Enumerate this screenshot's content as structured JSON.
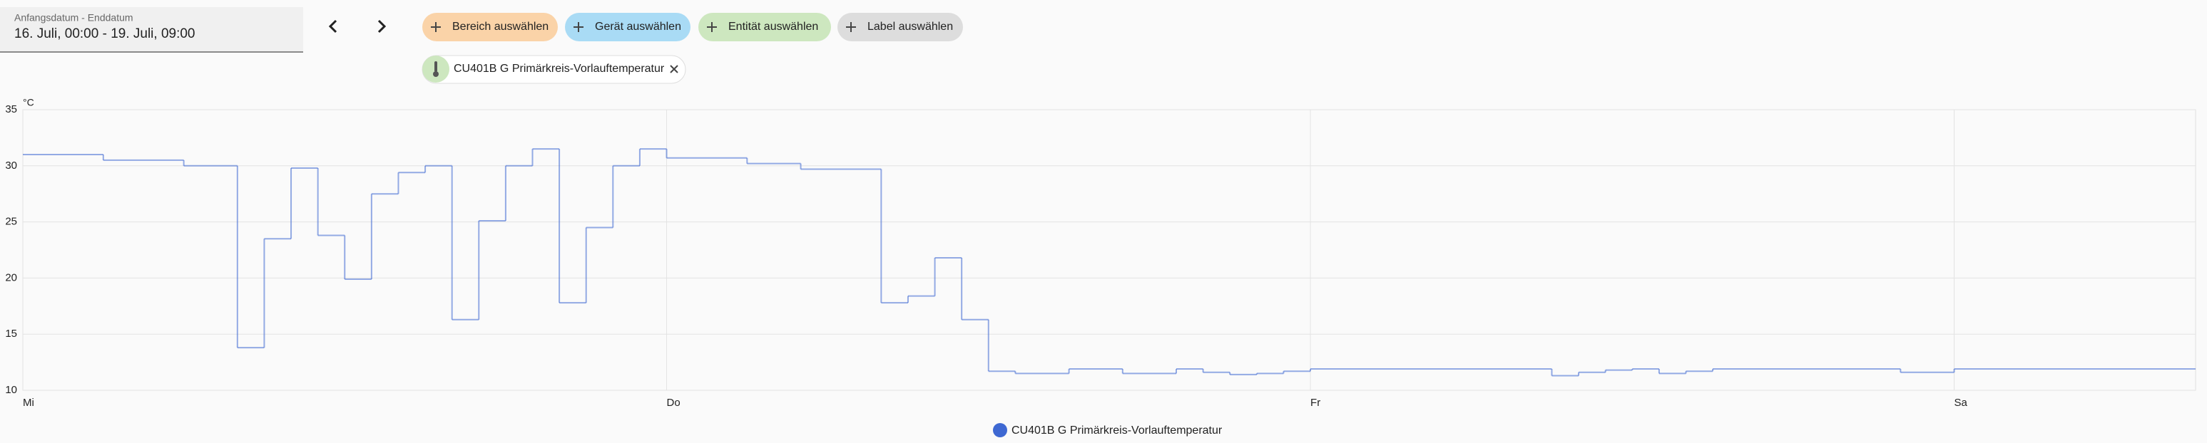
{
  "date_picker": {
    "label": "Anfangsdatum - Enddatum",
    "value": "16. Juli, 00:00 - 19. Juli, 09:00"
  },
  "filters": [
    "Bereich auswählen",
    "Gerät auswählen",
    "Entität auswählen",
    "Label auswählen"
  ],
  "selected_entity": "CU401B G Primärkreis-Vorlauftemperatur",
  "chart_data": {
    "type": "step-line",
    "y_unit": "°C",
    "x": [
      0,
      3,
      6,
      8,
      9,
      10,
      11,
      12,
      13,
      14,
      15,
      16,
      17,
      18,
      19,
      20,
      21,
      22,
      23,
      24,
      27,
      29,
      32,
      33,
      34,
      35,
      36,
      37,
      39,
      41,
      43,
      44,
      45,
      46,
      47,
      48,
      57,
      58,
      59,
      60,
      61,
      62,
      63,
      70,
      72,
      81
    ],
    "series": [
      {
        "name": "CU401B G Primärkreis-Vorlauftemperatur",
        "color": "#3e68d2",
        "values": [
          31.0,
          30.5,
          30.0,
          13.8,
          23.5,
          29.8,
          23.8,
          19.9,
          27.5,
          29.4,
          30.0,
          16.3,
          25.1,
          30.0,
          31.5,
          17.8,
          24.5,
          30.0,
          31.5,
          30.7,
          30.2,
          29.7,
          17.8,
          18.4,
          21.8,
          16.3,
          11.7,
          11.5,
          11.9,
          11.5,
          11.9,
          11.6,
          11.4,
          11.5,
          11.7,
          11.9,
          11.3,
          11.6,
          11.8,
          11.9,
          11.5,
          11.7,
          11.9,
          11.6,
          11.9,
          11.9
        ]
      }
    ],
    "xlim": [
      0,
      81
    ],
    "xticks": [
      {
        "value": 0,
        "label": "Mi"
      },
      {
        "value": 24,
        "label": "Do"
      },
      {
        "value": 48,
        "label": "Fr"
      },
      {
        "value": 72,
        "label": "Sa"
      }
    ],
    "ylim": [
      10,
      35
    ],
    "yticks": [
      10,
      15,
      20,
      25,
      30,
      35
    ],
    "grid": true
  }
}
